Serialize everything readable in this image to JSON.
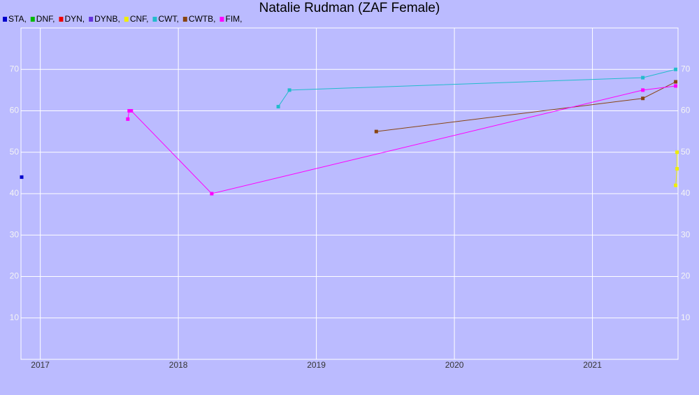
{
  "chart_data": {
    "type": "line",
    "title": "Natalie Rudman (ZAF Female)",
    "xlim": [
      2016.86,
      2021.62
    ],
    "xticks": [
      2017,
      2018,
      2019,
      2020,
      2021
    ],
    "ylim": [
      0,
      80
    ],
    "yticks": [
      10,
      20,
      30,
      40,
      50,
      60,
      70
    ],
    "grid": true,
    "series": [
      {
        "name": "STA,",
        "color": "#0000cc",
        "x": [
          2016.865
        ],
        "values": [
          44
        ]
      },
      {
        "name": "DNF,",
        "color": "#00bb00",
        "x": [],
        "values": []
      },
      {
        "name": "DYN,",
        "color": "#ee0000",
        "x": [],
        "values": []
      },
      {
        "name": "DYNB,",
        "color": "#6633dd",
        "x": [],
        "values": []
      },
      {
        "name": "CNF,",
        "color": "#eeee00",
        "x": [
          2021.603,
          2021.613,
          2021.613
        ],
        "values": [
          42,
          46,
          50
        ]
      },
      {
        "name": "CWT,",
        "color": "#22bbcc",
        "x": [
          2018.724,
          2018.805,
          2021.365,
          2021.603
        ],
        "values": [
          61,
          65,
          68,
          70
        ]
      },
      {
        "name": "CWTB,",
        "color": "#884411",
        "x": [
          2019.434,
          2021.365,
          2021.603
        ],
        "values": [
          55,
          63,
          67
        ]
      },
      {
        "name": "FIM,",
        "color": "#ff00ff",
        "x": [
          2017.634,
          2017.644,
          2017.659,
          2018.242,
          2021.365,
          2021.603
        ],
        "values": [
          58,
          60,
          60,
          40,
          65,
          66
        ]
      }
    ]
  }
}
